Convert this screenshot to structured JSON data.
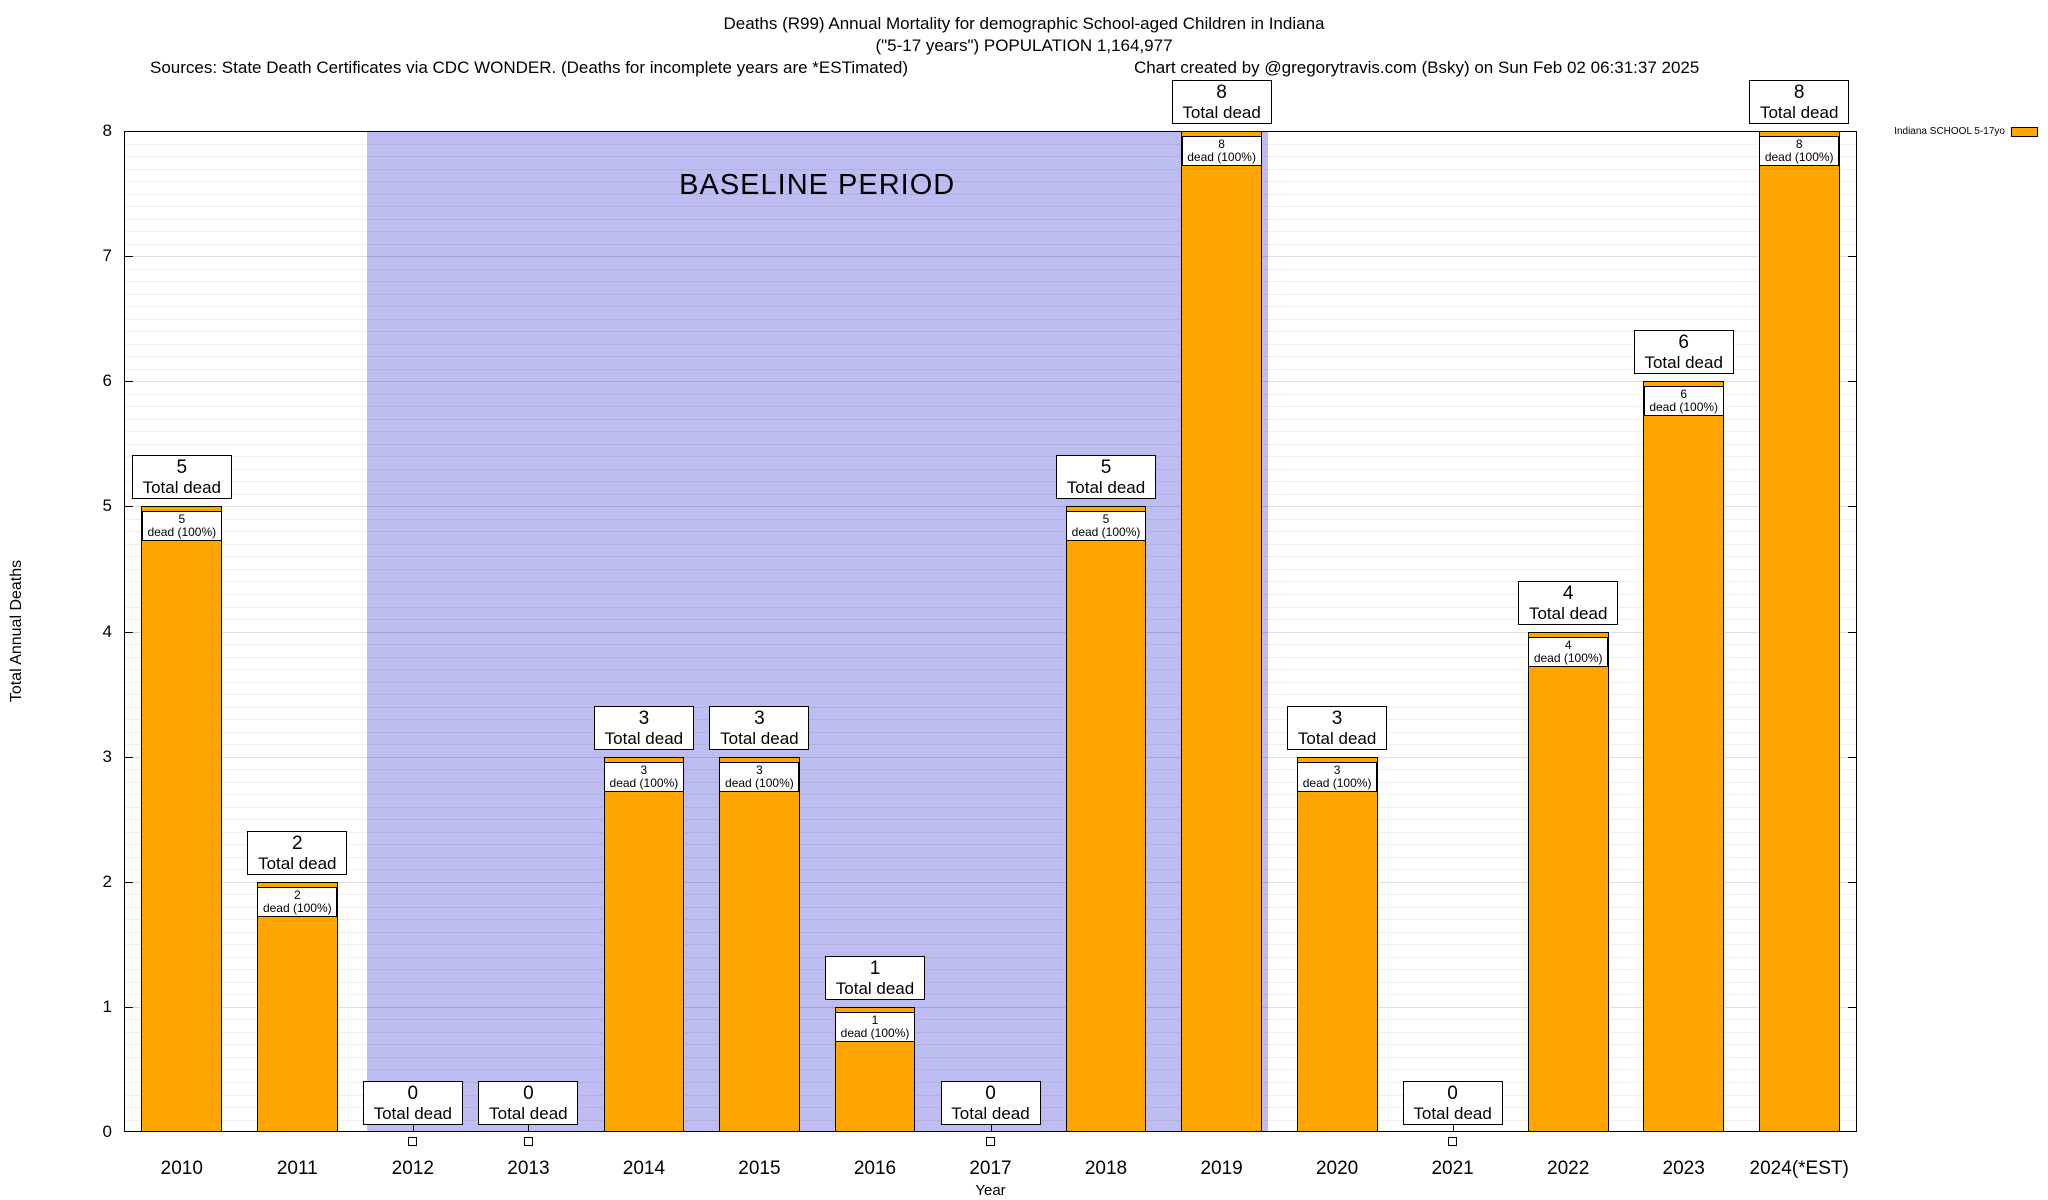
{
  "header": {
    "title_line1": "Deaths (R99) Annual Mortality for demographic School-aged Children in Indiana",
    "title_line2": "(\"5-17 years\") POPULATION 1,164,977",
    "sources_note": "Sources: State Death Certificates via CDC WONDER. (Deaths for incomplete years are *ESTimated)",
    "credit_note": "Chart created by @gregorytravis.com (Bsky) on Sun Feb 02 06:31:37 2025"
  },
  "chart_data": {
    "type": "bar",
    "title": "Deaths (R99) Annual Mortality for demographic School-aged Children in Indiana (\"5-17 years\") POPULATION 1,164,977",
    "categories": [
      "2010",
      "2011",
      "2012",
      "2013",
      "2014",
      "2015",
      "2016",
      "2017",
      "2018",
      "2019",
      "2020",
      "2021",
      "2022",
      "2023",
      "2024(*EST)"
    ],
    "values": [
      5,
      2,
      0,
      0,
      3,
      3,
      1,
      0,
      5,
      8,
      3,
      0,
      4,
      6,
      8
    ],
    "xlabel": "Year",
    "ylabel": "Total Annual Deaths",
    "ylim": [
      0,
      8
    ],
    "yticks": [
      0,
      1,
      2,
      3,
      4,
      5,
      6,
      7,
      8
    ],
    "minor_grid_step": 0.1,
    "grid": true,
    "bar_color": "#ffa500",
    "bar_border_color": "#000000",
    "total_label_suffix": "Total dead",
    "segment_label_suffix": "dead (100%)",
    "legend": {
      "label": "Indiana SCHOOL 5-17yo",
      "swatch_color": "#ffa500",
      "position": "top-right-outside"
    },
    "baseline": {
      "label": "BASELINE PERIOD",
      "from_year": "2012",
      "to_year": "2019",
      "fill_color": "#bdbdf2"
    }
  }
}
